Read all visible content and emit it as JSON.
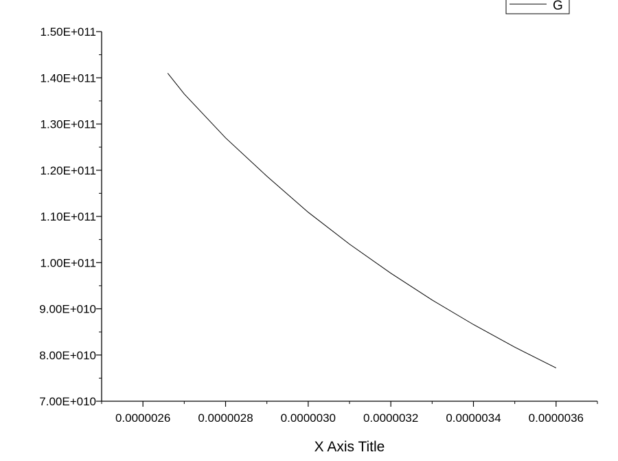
{
  "chart_data": {
    "type": "line",
    "title": "",
    "xlabel": "X Axis Title",
    "ylabel": "",
    "xlim": [
      2.5e-06,
      3.7e-06
    ],
    "ylim": [
      70000000000,
      150000000000
    ],
    "x_ticks": [
      2.6e-06,
      2.8e-06,
      3e-06,
      3.2e-06,
      3.4e-06,
      3.6e-06
    ],
    "x_tick_labels": [
      "0.0000026",
      "0.0000028",
      "0.0000030",
      "0.0000032",
      "0.0000034",
      "0.0000036"
    ],
    "y_ticks": [
      70000000000,
      80000000000,
      90000000000,
      100000000000,
      110000000000,
      120000000000,
      130000000000,
      140000000000,
      150000000000
    ],
    "y_tick_labels": [
      "7.00E+010",
      "8.00E+010",
      "9.00E+010",
      "1.00E+011",
      "1.10E+011",
      "1.20E+011",
      "1.30E+011",
      "1.40E+011",
      "1.50E+011"
    ],
    "grid": false,
    "legend": {
      "position": "top-right"
    },
    "series": [
      {
        "name": "G",
        "color": "#000000",
        "x": [
          2.66e-06,
          2.7e-06,
          2.8e-06,
          2.9e-06,
          3e-06,
          3.1e-06,
          3.2e-06,
          3.3e-06,
          3.4e-06,
          3.5e-06,
          3.6e-06
        ],
        "y": [
          141000000000,
          136500000000,
          127000000000,
          118700000000,
          110900000000,
          104000000000,
          97700000000,
          91900000000,
          86600000000,
          81700000000,
          77200000000
        ]
      }
    ]
  }
}
